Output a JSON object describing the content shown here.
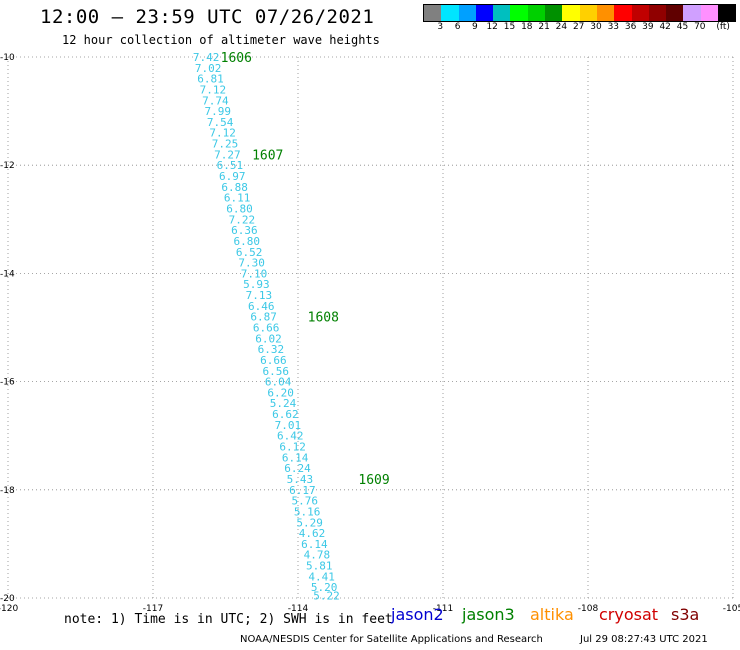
{
  "header": {
    "title": "12:00 — 23:59 UTC 07/26/2021",
    "subtitle": "12 hour collection of altimeter wave heights"
  },
  "colorbar": {
    "colors": [
      "#808080",
      "#00e5ff",
      "#00a0ff",
      "#0000ff",
      "#00bfbf",
      "#00ff00",
      "#00d000",
      "#009000",
      "#ffff00",
      "#ffd000",
      "#ff9000",
      "#ff0000",
      "#c00000",
      "#900000",
      "#600000",
      "#d0a0ff",
      "#ff90ff",
      "#000000"
    ],
    "labels": [
      "3",
      "6",
      "9",
      "12",
      "15",
      "18",
      "21",
      "24",
      "27",
      "30",
      "33",
      "36",
      "39",
      "42",
      "45",
      "70",
      "(ft)"
    ]
  },
  "chart_data": {
    "type": "scatter",
    "xlabel": "",
    "ylabel": "",
    "xlim": [
      -120,
      -105
    ],
    "ylim": [
      -20,
      -10
    ],
    "x_ticks": [
      "-120",
      "-117",
      "-114",
      "-111",
      "-108",
      "-105"
    ],
    "y_ticks": [
      "-10",
      "-12",
      "-14",
      "-16",
      "-18",
      "-20"
    ],
    "grid": "dotted",
    "track_color": "#3cc8e6",
    "track_label_color": "#008000",
    "wave_heights_ft": [
      "7.42",
      "7.02",
      "6.81",
      "7.12",
      "7.74",
      "7.99",
      "7.54",
      "7.12",
      "7.25",
      "7.27",
      "6.51",
      "6.97",
      "6.88",
      "6.11",
      "6.80",
      "7.22",
      "6.36",
      "6.80",
      "6.52",
      "7.30",
      "7.10",
      "5.93",
      "7.13",
      "6.46",
      "6.87",
      "6.66",
      "6.02",
      "6.32",
      "6.66",
      "6.56",
      "6.04",
      "6.20",
      "5.24",
      "6.62",
      "7.01",
      "6.42",
      "6.12",
      "6.14",
      "6.24",
      "5.43",
      "6.17",
      "5.76",
      "5.16",
      "5.29",
      "4.62",
      "6.14",
      "4.78",
      "5.81",
      "4.41",
      "5.20",
      "5.22"
    ],
    "points": [
      {
        "lon": -115.9,
        "lat": -10.0
      },
      {
        "lon": -115.86,
        "lat": -10.2
      },
      {
        "lon": -115.81,
        "lat": -10.4
      },
      {
        "lon": -115.76,
        "lat": -10.6
      },
      {
        "lon": -115.71,
        "lat": -10.8
      },
      {
        "lon": -115.66,
        "lat": -11.0
      },
      {
        "lon": -115.61,
        "lat": -11.2
      },
      {
        "lon": -115.56,
        "lat": -11.4
      },
      {
        "lon": -115.51,
        "lat": -11.6
      },
      {
        "lon": -115.46,
        "lat": -11.8
      },
      {
        "lon": -115.41,
        "lat": -12.0
      },
      {
        "lon": -115.36,
        "lat": -12.2
      },
      {
        "lon": -115.31,
        "lat": -12.4
      },
      {
        "lon": -115.26,
        "lat": -12.6
      },
      {
        "lon": -115.21,
        "lat": -12.8
      },
      {
        "lon": -115.16,
        "lat": -13.0
      },
      {
        "lon": -115.11,
        "lat": -13.2
      },
      {
        "lon": -115.06,
        "lat": -13.4
      },
      {
        "lon": -115.01,
        "lat": -13.6
      },
      {
        "lon": -114.96,
        "lat": -13.8
      },
      {
        "lon": -114.91,
        "lat": -14.0
      },
      {
        "lon": -114.86,
        "lat": -14.2
      },
      {
        "lon": -114.81,
        "lat": -14.4
      },
      {
        "lon": -114.76,
        "lat": -14.6
      },
      {
        "lon": -114.71,
        "lat": -14.8
      },
      {
        "lon": -114.66,
        "lat": -15.0
      },
      {
        "lon": -114.61,
        "lat": -15.2
      },
      {
        "lon": -114.56,
        "lat": -15.4
      },
      {
        "lon": -114.51,
        "lat": -15.6
      },
      {
        "lon": -114.46,
        "lat": -15.8
      },
      {
        "lon": -114.41,
        "lat": -16.0
      },
      {
        "lon": -114.36,
        "lat": -16.2
      },
      {
        "lon": -114.31,
        "lat": -16.4
      },
      {
        "lon": -114.26,
        "lat": -16.6
      },
      {
        "lon": -114.21,
        "lat": -16.8
      },
      {
        "lon": -114.16,
        "lat": -17.0
      },
      {
        "lon": -114.11,
        "lat": -17.2
      },
      {
        "lon": -114.06,
        "lat": -17.4
      },
      {
        "lon": -114.01,
        "lat": -17.6
      },
      {
        "lon": -113.96,
        "lat": -17.8
      },
      {
        "lon": -113.91,
        "lat": -18.0
      },
      {
        "lon": -113.86,
        "lat": -18.2
      },
      {
        "lon": -113.81,
        "lat": -18.4
      },
      {
        "lon": -113.76,
        "lat": -18.6
      },
      {
        "lon": -113.71,
        "lat": -18.8
      },
      {
        "lon": -113.66,
        "lat": -19.0
      },
      {
        "lon": -113.61,
        "lat": -19.2
      },
      {
        "lon": -113.56,
        "lat": -19.4
      },
      {
        "lon": -113.51,
        "lat": -19.6
      },
      {
        "lon": -113.46,
        "lat": -19.8
      },
      {
        "lon": -113.41,
        "lat": -19.95
      }
    ],
    "time_labels": [
      {
        "text": "1606",
        "lon": -115.6,
        "lat": -10.0
      },
      {
        "text": "1607",
        "lon": -114.95,
        "lat": -11.8
      },
      {
        "text": "1608",
        "lon": -113.8,
        "lat": -14.8
      },
      {
        "text": "1609",
        "lon": -112.75,
        "lat": -17.8
      }
    ]
  },
  "note": "note: 1) Time is in UTC; 2) SWH is in feet",
  "satellites": [
    {
      "name": "jason2",
      "color": "#0000d0"
    },
    {
      "name": "jason3",
      "color": "#008000"
    },
    {
      "name": "altika",
      "color": "#ff9000"
    },
    {
      "name": "cryosat",
      "color": "#d00000"
    },
    {
      "name": "s3a",
      "color": "#800000"
    }
  ],
  "footer": {
    "credit": "NOAA/NESDIS Center for Satellite Applications and Research",
    "timestamp": "Jul 29 08:27:43 UTC 2021"
  }
}
